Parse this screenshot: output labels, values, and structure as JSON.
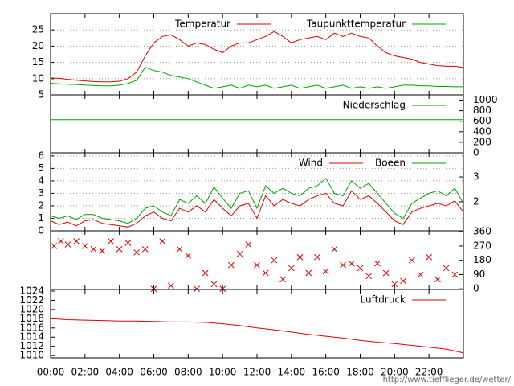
{
  "chart_data": [
    {
      "type": "line",
      "xlim": [
        0,
        24
      ],
      "ylim": [
        5,
        30
      ],
      "yticks": [
        5,
        10,
        15,
        20,
        25
      ],
      "grid": true,
      "x": [
        0,
        0.5,
        1,
        1.5,
        2,
        2.5,
        3,
        3.5,
        4,
        4.5,
        5,
        5.5,
        6,
        6.5,
        7,
        7.5,
        8,
        8.5,
        9,
        9.5,
        10,
        10.5,
        11,
        11.5,
        12,
        12.5,
        13,
        13.5,
        14,
        14.5,
        15,
        15.5,
        16,
        16.5,
        17,
        17.5,
        18,
        18.5,
        19,
        19.5,
        20,
        20.5,
        21,
        21.5,
        22,
        22.5,
        23,
        23.5,
        24
      ],
      "series": [
        {
          "name": "Temperatur",
          "color": "#e00000",
          "values": [
            10.2,
            10.1,
            9.8,
            9.5,
            9.3,
            9.1,
            9.0,
            9.0,
            9.2,
            10.0,
            12.0,
            17.0,
            21.0,
            23.0,
            23.5,
            22.0,
            20.0,
            21.0,
            20.5,
            19.0,
            18.0,
            20.0,
            21.0,
            21.0,
            22.0,
            23.0,
            24.5,
            23.0,
            21.0,
            22.0,
            22.5,
            23.0,
            22.0,
            24.0,
            23.0,
            24.0,
            23.0,
            22.5,
            20.0,
            18.0,
            17.0,
            16.5,
            16.0,
            15.0,
            14.5,
            14.0,
            13.8,
            13.8,
            13.5
          ]
        },
        {
          "name": "Taupunkttemperatur",
          "color": "#00a000",
          "values": [
            8.6,
            8.4,
            8.3,
            8.2,
            8.0,
            7.9,
            7.8,
            7.8,
            8.0,
            8.5,
            9.5,
            13.5,
            12.5,
            12.0,
            11.0,
            10.5,
            10.0,
            9.0,
            8.0,
            7.0,
            7.5,
            8.0,
            7.0,
            8.0,
            7.5,
            8.0,
            7.0,
            7.5,
            8.0,
            7.0,
            7.5,
            8.0,
            7.0,
            7.5,
            8.0,
            7.0,
            7.5,
            7.0,
            7.5,
            7.0,
            7.5,
            8.0,
            8.0,
            7.8,
            7.8,
            7.6,
            7.6,
            7.5,
            7.5
          ]
        }
      ]
    },
    {
      "type": "line",
      "xlim": [
        0,
        24
      ],
      "y2lim": [
        0,
        1100
      ],
      "y2ticks": [
        0,
        200,
        400,
        600,
        800,
        1000
      ],
      "x": [
        0,
        24
      ],
      "series": [
        {
          "name": "Niederschlag",
          "color": "#00a000",
          "axis": "y2",
          "values": [
            630,
            630
          ]
        }
      ]
    },
    {
      "type": "line",
      "xlim": [
        0,
        24
      ],
      "ylim": [
        0,
        6.25
      ],
      "yticks": [
        0,
        1,
        2,
        3,
        4,
        5,
        6
      ],
      "y2lim": [
        0.84,
        3.97
      ],
      "y2ticks": [
        2,
        3
      ],
      "grid": true,
      "x": [
        0,
        0.5,
        1,
        1.5,
        2,
        2.5,
        3,
        3.5,
        4,
        4.5,
        5,
        5.5,
        6,
        6.5,
        7,
        7.5,
        8,
        8.5,
        9,
        9.5,
        10,
        10.5,
        11,
        11.5,
        12,
        12.5,
        13,
        13.5,
        14,
        14.5,
        15,
        15.5,
        16,
        16.5,
        17,
        17.5,
        18,
        18.5,
        19,
        19.5,
        20,
        20.5,
        21,
        21.5,
        22,
        22.5,
        23,
        23.5,
        24
      ],
      "series": [
        {
          "name": "Wind",
          "color": "#e00000",
          "values": [
            0.8,
            0.5,
            0.7,
            0.4,
            0.8,
            0.9,
            0.6,
            0.5,
            0.4,
            0.3,
            0.6,
            1.2,
            1.5,
            1.0,
            0.8,
            1.8,
            1.5,
            2.0,
            1.5,
            2.5,
            1.8,
            1.2,
            2.0,
            2.2,
            1.0,
            2.8,
            2.0,
            2.5,
            2.2,
            2.0,
            2.5,
            2.8,
            3.0,
            2.2,
            2.0,
            3.2,
            2.5,
            2.8,
            2.2,
            1.5,
            0.8,
            0.5,
            1.5,
            1.8,
            2.0,
            2.2,
            2.0,
            2.4,
            1.5
          ]
        },
        {
          "name": "Boeen",
          "color": "#00a000",
          "values": [
            1.2,
            1.0,
            1.2,
            0.9,
            1.3,
            1.3,
            1.0,
            0.9,
            0.8,
            0.6,
            1.0,
            1.8,
            2.0,
            1.5,
            1.2,
            2.5,
            2.2,
            2.8,
            2.2,
            3.5,
            2.6,
            1.8,
            3.0,
            3.2,
            1.8,
            3.6,
            3.0,
            3.4,
            3.0,
            2.8,
            3.4,
            3.6,
            4.2,
            3.0,
            2.8,
            4.0,
            3.4,
            3.8,
            3.0,
            2.2,
            1.4,
            1.0,
            2.2,
            2.6,
            3.0,
            3.2,
            2.8,
            3.4,
            2.2
          ]
        }
      ]
    },
    {
      "type": "scatter",
      "xlim": [
        0,
        24
      ],
      "y2lim": [
        -4,
        366
      ],
      "y2ticks": [
        0,
        90,
        180,
        270,
        360
      ],
      "x": [
        0.2,
        0.6,
        1,
        1.5,
        2,
        2.5,
        3,
        3.5,
        4,
        4.5,
        5,
        5.5,
        6,
        6.5,
        7,
        7.5,
        8,
        8.5,
        9,
        9.5,
        10,
        10.5,
        11,
        11.5,
        12,
        12.5,
        13,
        13.5,
        14,
        14.5,
        15,
        15.5,
        16,
        16.5,
        17,
        17.5,
        18,
        18.5,
        19,
        19.5,
        20,
        20.5,
        21,
        21.5,
        22,
        22.5,
        23,
        23.5
      ],
      "series": [
        {
          "color": "#e00000",
          "axis": "y2",
          "values": [
            270,
            300,
            280,
            300,
            270,
            250,
            240,
            300,
            250,
            290,
            230,
            250,
            0,
            300,
            20,
            250,
            210,
            0,
            100,
            30,
            0,
            150,
            220,
            280,
            150,
            100,
            180,
            60,
            130,
            200,
            100,
            200,
            110,
            250,
            150,
            160,
            130,
            80,
            160,
            100,
            30,
            50,
            180,
            90,
            200,
            60,
            130,
            90
          ]
        }
      ]
    },
    {
      "type": "line",
      "xlim": [
        0,
        24
      ],
      "ylim": [
        1009.5,
        1024.35
      ],
      "yticks": [
        1010,
        1012,
        1014,
        1016,
        1018,
        1020,
        1022,
        1024
      ],
      "xticks": [
        {
          "value": 0,
          "label": "00:00"
        },
        {
          "value": 2,
          "label": "02:00"
        },
        {
          "value": 4,
          "label": "04:00"
        },
        {
          "value": 6,
          "label": "06:00"
        },
        {
          "value": 8,
          "label": "08:00"
        },
        {
          "value": 10,
          "label": "10:00"
        },
        {
          "value": 12,
          "label": "12:00"
        },
        {
          "value": 14,
          "label": "14:00"
        },
        {
          "value": 16,
          "label": "16:00"
        },
        {
          "value": 18,
          "label": "18:00"
        },
        {
          "value": 20,
          "label": "20:00"
        },
        {
          "value": 22,
          "label": "22:00"
        }
      ],
      "x": [
        0,
        1,
        2,
        3,
        4,
        5,
        6,
        7,
        8,
        9,
        10,
        11,
        12,
        13,
        14,
        15,
        16,
        17,
        18,
        19,
        20,
        21,
        22,
        23,
        24
      ],
      "series": [
        {
          "name": "Luftdruck",
          "color": "#e00000",
          "values": [
            1018.0,
            1017.8,
            1017.7,
            1017.6,
            1017.5,
            1017.5,
            1017.4,
            1017.3,
            1017.3,
            1017.2,
            1016.9,
            1016.5,
            1016.0,
            1015.6,
            1015.1,
            1014.6,
            1014.2,
            1013.8,
            1013.3,
            1012.9,
            1012.6,
            1012.2,
            1011.8,
            1011.4,
            1010.6
          ]
        }
      ]
    }
  ],
  "footer": "http://www.tiefflieger.de/wetter/"
}
